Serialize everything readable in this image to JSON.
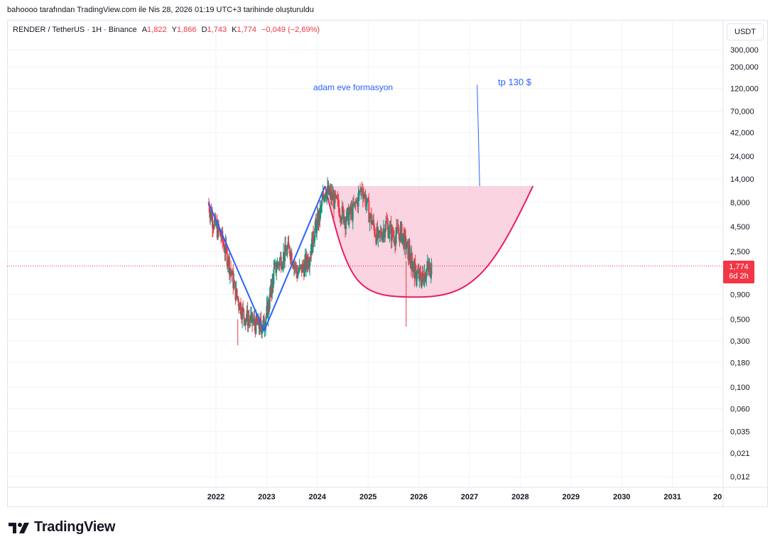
{
  "header": {
    "author_line": "bahoooo tarafından TradingView.com ile Nis 28, 2026 01:19 UTC+3 tarihinde oluşturuldu"
  },
  "legend": {
    "symbol": "RENDER / TetherUS · 1H · Binance",
    "open_key": "A",
    "open": "1,822",
    "high_key": "Y",
    "high": "1,866",
    "low_key": "D",
    "low": "1,743",
    "close_key": "K",
    "close": "1,774",
    "change": "−0,049 (−2,69%)"
  },
  "currency_button": "USDT",
  "price_tag": {
    "price": "1,774",
    "countdown": "6d 2h"
  },
  "annotations": {
    "pattern_label": "adam eve formasyon",
    "target_label": "tp 130 $"
  },
  "brand": "TradingView",
  "colors": {
    "down": "#f23645",
    "up": "#089981",
    "trend_line": "#2962ff",
    "cup_fill": "#f8c5d6",
    "cup_stroke": "#e91e63",
    "text_blue": "#2962ff"
  },
  "chart_data": {
    "type": "line",
    "scale": "log",
    "title": "",
    "xlabel": "",
    "ylabel": "",
    "x_ticks": [
      "2022",
      "2023",
      "2024",
      "2025",
      "2026",
      "2027",
      "2028",
      "2029",
      "2030",
      "2031",
      "20"
    ],
    "y_ticks": [
      "300,000",
      "200,000",
      "120,000",
      "70,000",
      "42,000",
      "24,000",
      "14,000",
      "8,000",
      "4,500",
      "2,500",
      "0,900",
      "0,500",
      "0,300",
      "0,180",
      "0,100",
      "0,060",
      "0,035",
      "0,021",
      "0,012"
    ],
    "ylim": [
      0.01,
      300
    ],
    "series": [
      {
        "values": [
          [
            2021.85,
            7.8
          ],
          [
            2021.95,
            5.0
          ],
          [
            2022.1,
            3.6
          ],
          [
            2022.25,
            2.0
          ],
          [
            2022.4,
            0.9
          ],
          [
            2022.55,
            0.55
          ],
          [
            2022.7,
            0.48
          ],
          [
            2022.85,
            0.42
          ],
          [
            2022.95,
            0.45
          ],
          [
            2023.05,
            0.75
          ],
          [
            2023.15,
            1.6
          ],
          [
            2023.3,
            2.2
          ],
          [
            2023.45,
            2.7
          ],
          [
            2023.6,
            1.5
          ],
          [
            2023.75,
            1.8
          ],
          [
            2023.85,
            2.3
          ],
          [
            2023.95,
            4.2
          ],
          [
            2024.05,
            6.0
          ],
          [
            2024.15,
            11.0
          ],
          [
            2024.25,
            9.5
          ],
          [
            2024.4,
            7.5
          ],
          [
            2024.55,
            5.5
          ],
          [
            2024.7,
            6.5
          ],
          [
            2024.88,
            11.5
          ],
          [
            2025.05,
            5.5
          ],
          [
            2025.2,
            3.3
          ],
          [
            2025.35,
            4.8
          ],
          [
            2025.5,
            3.6
          ],
          [
            2025.65,
            4.0
          ],
          [
            2025.78,
            2.6
          ],
          [
            2025.85,
            2.1
          ],
          [
            2025.93,
            1.5
          ],
          [
            2026.05,
            1.3
          ],
          [
            2026.15,
            1.6
          ],
          [
            2026.25,
            1.77
          ]
        ]
      }
    ],
    "annotations": {
      "trend_lines": [
        {
          "from": [
            2021.85,
            8.0
          ],
          "to": [
            2022.95,
            0.38
          ]
        },
        {
          "from": [
            2022.95,
            0.38
          ],
          "to": [
            2024.15,
            11.8
          ]
        }
      ],
      "cup": {
        "left": [
          2024.15,
          11.8
        ],
        "bottom": [
          2026.1,
          0.85
        ],
        "right": [
          2028.25,
          11.8
        ]
      },
      "target_line": {
        "from": [
          2027.2,
          11.8
        ],
        "to": [
          2027.15,
          130
        ]
      }
    },
    "last_price": 1.774,
    "grid": true
  }
}
